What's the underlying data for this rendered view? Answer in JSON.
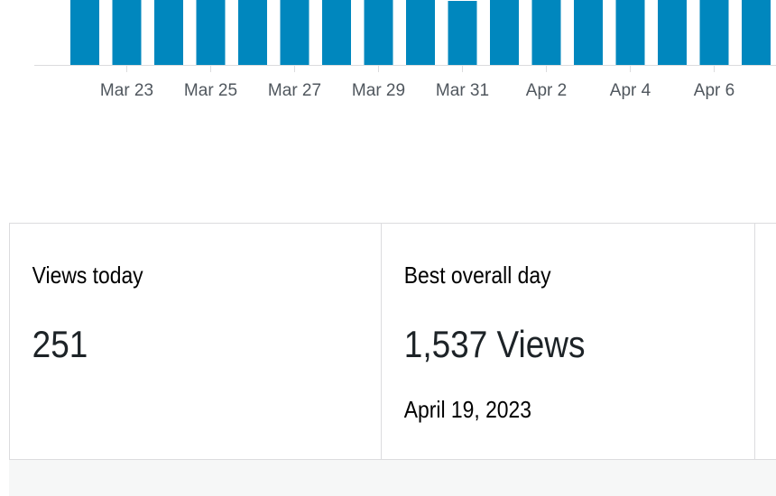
{
  "chart": {
    "x_labels": [
      "Mar 23",
      "Mar 25",
      "Mar 27",
      "Mar 29",
      "Mar 31",
      "Apr 2",
      "Apr 4",
      "Apr 6"
    ]
  },
  "stats": [
    {
      "label": "Views today",
      "value": "251"
    },
    {
      "label": "Best overall day",
      "value": "1,537 Views",
      "date": "April 19, 2023"
    }
  ]
}
